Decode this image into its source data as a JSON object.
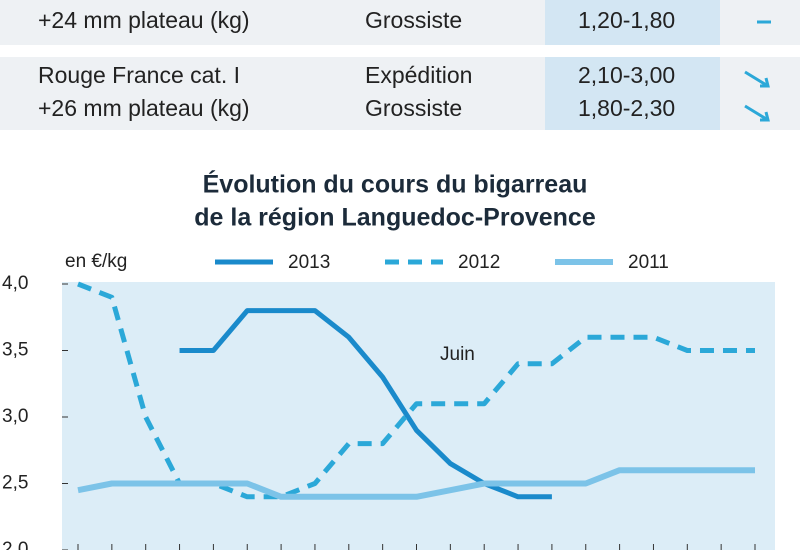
{
  "table": {
    "rows": [
      {
        "product": [
          "+24 mm plateau (kg)"
        ],
        "market": [
          "Grossiste"
        ],
        "price": [
          "1,20-1,80"
        ]
      },
      {
        "product": [
          "Rouge France cat. I",
          "+26 mm plateau (kg)"
        ],
        "market": [
          "Expédition",
          "Grossiste"
        ],
        "price": [
          "2,10-3,00",
          "1,80-2,30"
        ]
      }
    ]
  },
  "chart_data": {
    "type": "line",
    "title": [
      "Évolution du cours du bigarreau",
      "de la région Languedoc-Provence"
    ],
    "ylabel": "en €/kg",
    "annotation": "Juin",
    "categories": [
      null,
      null,
      null,
      null,
      null,
      null,
      null,
      null,
      null,
      null,
      null,
      null,
      null,
      null,
      null,
      null,
      null,
      null,
      null,
      null,
      null
    ],
    "series": [
      {
        "name": "2013",
        "color": "#1a8acb",
        "style": "solid",
        "values": [
          null,
          null,
          null,
          3.5,
          3.5,
          3.8,
          3.8,
          3.8,
          3.6,
          3.3,
          2.9,
          2.65,
          2.5,
          2.4,
          2.4,
          null,
          null,
          null,
          null,
          null,
          null
        ]
      },
      {
        "name": "2012",
        "color": "#2ba8d8",
        "style": "dashed",
        "values": [
          4.0,
          3.9,
          3.0,
          2.5,
          2.5,
          2.4,
          2.4,
          2.5,
          2.8,
          2.8,
          3.1,
          3.1,
          3.1,
          3.4,
          3.4,
          3.6,
          3.6,
          3.6,
          3.5,
          3.5,
          3.5
        ]
      },
      {
        "name": "2011",
        "color": "#7cc3e8",
        "style": "solid",
        "values": [
          2.45,
          2.5,
          2.5,
          2.5,
          2.5,
          2.5,
          2.4,
          2.4,
          2.4,
          2.4,
          2.4,
          2.45,
          2.5,
          2.5,
          2.5,
          2.5,
          2.6,
          2.6,
          2.6,
          2.6,
          2.6
        ]
      }
    ],
    "ylim": [
      2,
      4
    ],
    "yticks": [
      {
        "value": 2,
        "label": "2,0"
      },
      {
        "value": 2.5,
        "label": "2,5"
      },
      {
        "value": 3,
        "label": "3,0"
      },
      {
        "value": 3.5,
        "label": "3,5"
      },
      {
        "value": 4,
        "label": "4,0"
      }
    ]
  }
}
